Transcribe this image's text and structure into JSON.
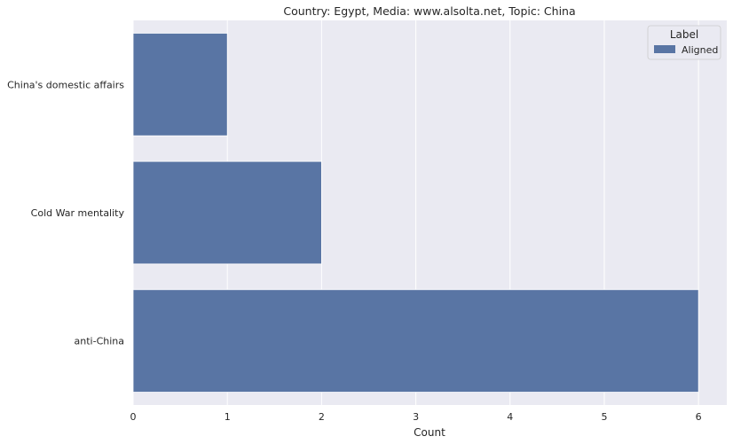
{
  "chart_data": {
    "type": "bar",
    "orientation": "horizontal",
    "title": "Country: Egypt, Media: www.alsolta.net, Topic: China",
    "xlabel": "Count",
    "ylabel": "",
    "categories": [
      "China's domestic affairs",
      "Cold War mentality",
      "anti-China"
    ],
    "series": [
      {
        "name": "Aligned",
        "values": [
          1,
          2,
          6
        ]
      }
    ],
    "xlim": [
      0,
      6.3
    ],
    "xticks": [
      0,
      1,
      2,
      3,
      4,
      5,
      6
    ],
    "grid": true,
    "legend": {
      "title": "Label",
      "placement": "top-right"
    },
    "colors": {
      "bar": "#5975a4",
      "plot_background": "#eaeaf2",
      "grid": "#ffffff"
    }
  }
}
